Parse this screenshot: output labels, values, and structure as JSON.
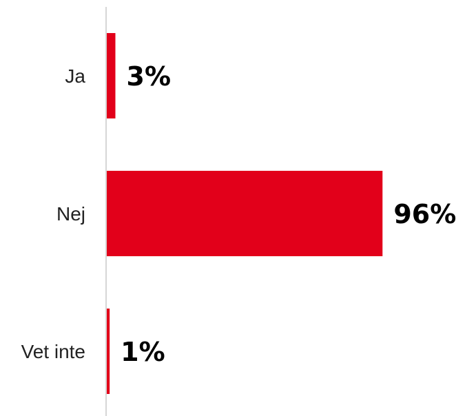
{
  "chart_data": {
    "type": "bar",
    "orientation": "horizontal",
    "categories": [
      "Ja",
      "Nej",
      "Vet inte"
    ],
    "values": [
      3,
      96,
      1
    ],
    "value_labels": [
      "3%",
      "96%",
      "1%"
    ],
    "unit": "%",
    "xlim": [
      0,
      100
    ],
    "title": "",
    "xlabel": "",
    "ylabel": "",
    "grid": false,
    "legend": "none",
    "bar_color": "#e2001a",
    "axis_color": "#c8c8c8"
  }
}
